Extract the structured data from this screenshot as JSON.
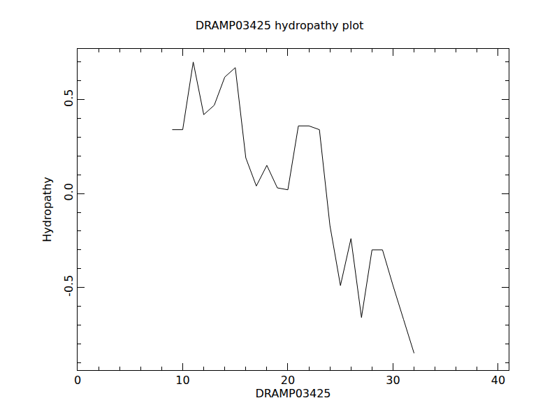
{
  "chart_data": {
    "type": "line",
    "title": "DRAMP03425 hydropathy plot",
    "x_label": "DRAMP03425",
    "y_label": "Hydropathy",
    "x": [
      9,
      10,
      11,
      12,
      13,
      14,
      15,
      16,
      17,
      18,
      19,
      20,
      21,
      22,
      23,
      24,
      25,
      26,
      27,
      28,
      29,
      30,
      31,
      32
    ],
    "values": [
      0.34,
      0.34,
      0.7,
      0.42,
      0.47,
      0.62,
      0.67,
      0.19,
      0.04,
      0.15,
      0.03,
      0.02,
      0.36,
      0.36,
      0.34,
      -0.17,
      -0.49,
      -0.24,
      -0.66,
      -0.3,
      -0.3,
      -0.49,
      -0.67,
      -0.85
    ],
    "color": "#000000",
    "xlim": [
      0,
      41
    ],
    "xticks": [
      0,
      10,
      20,
      30,
      40
    ],
    "ylim": [
      -0.94,
      0.77
    ],
    "yticks": [
      -0.5,
      {
        "value": 0,
        "label": "0.0"
      },
      0.5
    ],
    "grid": false
  }
}
